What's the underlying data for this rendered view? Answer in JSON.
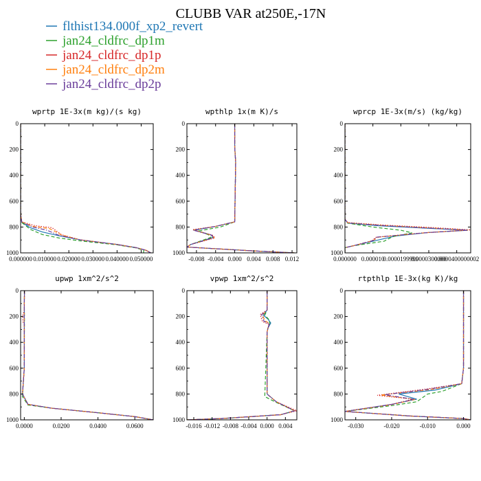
{
  "figure": {
    "title": "CLUBB VAR at250E,-17N",
    "legend": [
      {
        "label": "flthist134.000f_xp2_revert",
        "color": "#1f77b4",
        "dash": "solid"
      },
      {
        "label": "jan24_cldfrc_dp1m",
        "color": "#2ca02c",
        "dash": "dash"
      },
      {
        "label": "jan24_cldfrc_dp1p",
        "color": "#d62728",
        "dash": "dot"
      },
      {
        "label": "jan24_cldfrc_dp2m",
        "color": "#ff7f0e",
        "dash": "dash"
      },
      {
        "label": "jan24_cldfrc_dp2p",
        "color": "#6a3d9a",
        "dash": "dashdot"
      }
    ]
  },
  "chart_data": [
    {
      "type": "line",
      "title": "wprtp  1E-3x(m kg)/(s kg)",
      "xlim": [
        0,
        0.055
      ],
      "ylim": [
        0,
        1000
      ],
      "y_inverted": true,
      "xticks": [
        0.0,
        0.01,
        0.02,
        0.03,
        0.04,
        0.05
      ],
      "xtick_labels": [
        "0.000000",
        "0.010000",
        "0.020000",
        "0.030000",
        "0.040000",
        "0.050000"
      ],
      "yticks": [
        0,
        200,
        400,
        600,
        800,
        1000
      ],
      "series": [
        {
          "name": "flthist134.000f_xp2_revert",
          "x": [
            0,
            0,
            0.0005,
            0.004,
            0.009,
            0.016,
            0.025,
            0.04,
            0.048,
            0.052,
            0.054
          ],
          "y": [
            0,
            700,
            765,
            805,
            838,
            868,
            900,
            935,
            960,
            980,
            1000
          ]
        },
        {
          "name": "jan24_cldfrc_dp1m",
          "x": [
            0,
            0,
            0.0005,
            0.004,
            0.009,
            0.016,
            0.025,
            0.04,
            0.048,
            0.051,
            0.051
          ],
          "y": [
            0,
            700,
            765,
            818,
            858,
            885,
            908,
            938,
            962,
            980,
            1000
          ]
        },
        {
          "name": "jan24_cldfrc_dp1p",
          "x": [
            0,
            0,
            0.0005,
            0.006,
            0.013,
            0.017,
            0.025,
            0.04,
            0.048,
            0.052,
            0.054
          ],
          "y": [
            0,
            700,
            760,
            790,
            805,
            860,
            900,
            935,
            960,
            980,
            1000
          ]
        },
        {
          "name": "jan24_cldfrc_dp2m",
          "x": [
            0,
            0,
            0.0005,
            0.005,
            0.012,
            0.017,
            0.025,
            0.04,
            0.048,
            0.052,
            0.054
          ],
          "y": [
            0,
            700,
            760,
            795,
            812,
            862,
            900,
            935,
            960,
            980,
            1000
          ]
        },
        {
          "name": "jan24_cldfrc_dp2p",
          "x": [
            0,
            0,
            0.0005,
            0.005,
            0.011,
            0.016,
            0.025,
            0.04,
            0.048,
            0.052,
            0.054
          ],
          "y": [
            0,
            700,
            762,
            800,
            825,
            865,
            900,
            935,
            960,
            980,
            1000
          ]
        }
      ]
    },
    {
      "type": "line",
      "title": "wpthlp  1x(m K)/s",
      "xlim": [
        -0.01,
        0.013
      ],
      "ylim": [
        0,
        1000
      ],
      "y_inverted": true,
      "xticks": [
        -0.008,
        -0.004,
        0.0,
        0.004,
        0.008,
        0.012
      ],
      "xtick_labels": [
        "-0.008",
        "-0.004",
        "0.000",
        "0.004",
        "0.008",
        "0.012"
      ],
      "yticks": [
        0,
        200,
        400,
        600,
        800,
        1000
      ],
      "series": [
        {
          "name": "flthist134.000f_xp2_revert",
          "x": [
            0,
            0,
            0.0002,
            0,
            -0.004,
            -0.0085,
            -0.005,
            -0.0045,
            -0.0092,
            -0.01,
            0.004,
            0.0125
          ],
          "y": [
            0,
            180,
            300,
            760,
            795,
            825,
            860,
            880,
            935,
            955,
            985,
            1000
          ]
        },
        {
          "name": "jan24_cldfrc_dp1m",
          "x": [
            0,
            0,
            0.0002,
            0,
            -0.003,
            -0.0075,
            -0.0055,
            -0.005,
            -0.0092,
            -0.01,
            0.004,
            0.0125
          ],
          "y": [
            0,
            180,
            300,
            760,
            800,
            830,
            860,
            880,
            935,
            955,
            985,
            1000
          ]
        },
        {
          "name": "jan24_cldfrc_dp1p",
          "x": [
            0,
            0,
            0.0002,
            0,
            -0.004,
            -0.0088,
            -0.0045,
            -0.0042,
            -0.0092,
            -0.01,
            0.004,
            0.0125
          ],
          "y": [
            0,
            180,
            300,
            760,
            795,
            820,
            865,
            885,
            935,
            955,
            985,
            1000
          ]
        },
        {
          "name": "jan24_cldfrc_dp2m",
          "x": [
            0,
            0,
            0.0002,
            0,
            -0.004,
            -0.0086,
            -0.005,
            -0.0043,
            -0.0092,
            -0.01,
            0.004,
            0.0125
          ],
          "y": [
            0,
            180,
            300,
            760,
            795,
            822,
            862,
            882,
            935,
            955,
            985,
            1000
          ]
        },
        {
          "name": "jan24_cldfrc_dp2p",
          "x": [
            0,
            0,
            0.0002,
            0,
            -0.004,
            -0.0087,
            -0.0048,
            -0.0044,
            -0.0092,
            -0.01,
            0.004,
            0.0125
          ],
          "y": [
            0,
            180,
            300,
            760,
            795,
            824,
            863,
            883,
            935,
            955,
            985,
            1000
          ]
        }
      ]
    },
    {
      "type": "line",
      "title": "wprcp  1E-3x(m/s) (kg/kg)",
      "xlim": [
        0,
        4.5e-05
      ],
      "ylim": [
        0,
        1000
      ],
      "y_inverted": true,
      "xticks": [
        0,
        1e-05,
        2e-05,
        3e-05,
        4e-05
      ],
      "xtick_labels": [
        "0.000000",
        "0.000010",
        "0.0000199999",
        "0.0000300000",
        "0.0000400000002"
      ],
      "yticks": [
        0,
        200,
        400,
        600,
        800,
        1000
      ],
      "series": [
        {
          "name": "flthist134.000f_xp2_revert",
          "x": [
            0,
            0,
            1e-06,
            1.2e-05,
            3e-05,
            4.4e-05,
            3e-05,
            1.8e-05,
            1.2e-05,
            3e-06,
            0,
            0
          ],
          "y": [
            0,
            740,
            770,
            790,
            810,
            825,
            842,
            870,
            900,
            945,
            960,
            1000
          ]
        },
        {
          "name": "jan24_cldfrc_dp1m",
          "x": [
            0,
            0,
            1e-06,
            1e-05,
            2e-05,
            2.4e-05,
            1.7e-05,
            1.4e-05,
            3e-06,
            0,
            0
          ],
          "y": [
            0,
            740,
            770,
            800,
            825,
            845,
            875,
            910,
            945,
            960,
            1000
          ]
        },
        {
          "name": "jan24_cldfrc_dp1p",
          "x": [
            0,
            0,
            1e-06,
            1.4e-05,
            3.2e-05,
            4.5e-05,
            2.8e-05,
            1.1e-05,
            9.5e-06,
            3e-06,
            0,
            0
          ],
          "y": [
            0,
            740,
            765,
            785,
            805,
            822,
            845,
            880,
            910,
            945,
            960,
            1000
          ]
        },
        {
          "name": "jan24_cldfrc_dp2m",
          "x": [
            0,
            0,
            1e-06,
            1.3e-05,
            3.1e-05,
            4.4e-05,
            2.9e-05,
            1.2e-05,
            1e-05,
            3e-06,
            0,
            0
          ],
          "y": [
            0,
            740,
            767,
            787,
            808,
            824,
            844,
            878,
            905,
            945,
            960,
            1000
          ]
        },
        {
          "name": "jan24_cldfrc_dp2p",
          "x": [
            0,
            0,
            1e-06,
            1.3e-05,
            3e-05,
            4.4e-05,
            2.9e-05,
            1.15e-05,
            1e-05,
            3e-06,
            0,
            0
          ],
          "y": [
            0,
            740,
            768,
            788,
            808,
            824,
            844,
            878,
            905,
            945,
            960,
            1000
          ]
        }
      ]
    },
    {
      "type": "line",
      "title": "upwp  1xm^2/s^2",
      "xlim": [
        -0.002,
        0.07
      ],
      "ylim": [
        0,
        1000
      ],
      "y_inverted": true,
      "xticks": [
        0,
        0.02,
        0.04,
        0.06
      ],
      "xtick_labels": [
        "0.0000",
        "0.0200",
        "0.0400",
        "0.0600"
      ],
      "yticks": [
        0,
        200,
        400,
        600,
        800,
        1000
      ],
      "series": [
        {
          "name": "flthist134.000f_xp2_revert",
          "x": [
            0.0001,
            0,
            0,
            0,
            -0.001,
            0.002,
            0.015,
            0.04,
            0.06,
            0.07
          ],
          "y": [
            0,
            100,
            200,
            600,
            800,
            880,
            910,
            945,
            975,
            1000
          ]
        },
        {
          "name": "jan24_cldfrc_dp1m",
          "x": [
            0.0001,
            0,
            0.0001,
            0,
            -0.001,
            0.002,
            0.015,
            0.04,
            0.06,
            0.07
          ],
          "y": [
            0,
            100,
            200,
            600,
            820,
            885,
            910,
            945,
            975,
            1000
          ]
        },
        {
          "name": "jan24_cldfrc_dp1p",
          "x": [
            0.0001,
            0,
            -0.0008,
            -0.0008,
            0,
            0,
            -0.001,
            0.002,
            0.015,
            0.04,
            0.06,
            0.07
          ],
          "y": [
            0,
            150,
            190,
            240,
            260,
            600,
            800,
            880,
            910,
            945,
            975,
            1000
          ]
        },
        {
          "name": "jan24_cldfrc_dp2m",
          "x": [
            0.0001,
            0,
            0,
            0,
            -0.001,
            0.002,
            0.015,
            0.04,
            0.06,
            0.07
          ],
          "y": [
            0,
            100,
            200,
            600,
            800,
            880,
            910,
            945,
            975,
            1000
          ]
        },
        {
          "name": "jan24_cldfrc_dp2p",
          "x": [
            0.0001,
            0,
            0,
            0,
            -0.001,
            0.002,
            0.015,
            0.04,
            0.06,
            0.07
          ],
          "y": [
            0,
            100,
            200,
            600,
            800,
            880,
            910,
            945,
            975,
            1000
          ]
        }
      ]
    },
    {
      "type": "line",
      "title": "vpwp  1xm^2/s^2",
      "xlim": [
        -0.0175,
        0.0065
      ],
      "ylim": [
        0,
        1000
      ],
      "y_inverted": true,
      "xticks": [
        -0.016,
        -0.012,
        -0.008,
        -0.004,
        0.0,
        0.004
      ],
      "xtick_labels": [
        "-0.016",
        "-0.012",
        "-0.008",
        "-0.004",
        "0.000",
        "0.004"
      ],
      "yticks": [
        0,
        200,
        400,
        600,
        800,
        1000
      ],
      "series": [
        {
          "name": "flthist134.000f_xp2_revert",
          "x": [
            0,
            0,
            -0.0008,
            0.0002,
            0.0008,
            0.0002,
            0,
            0,
            0.002,
            0.006,
            0.003,
            -0.01,
            -0.0175
          ],
          "y": [
            0,
            150,
            190,
            220,
            250,
            290,
            320,
            800,
            860,
            930,
            960,
            990,
            1000
          ]
        },
        {
          "name": "jan24_cldfrc_dp1m",
          "x": [
            0,
            0,
            -0.0005,
            0.0003,
            0.0006,
            0.0002,
            0,
            -0.0005,
            0.002,
            0.006,
            0.003,
            -0.01,
            -0.0175
          ],
          "y": [
            0,
            150,
            190,
            220,
            250,
            290,
            320,
            820,
            865,
            930,
            960,
            990,
            1000
          ]
        },
        {
          "name": "jan24_cldfrc_dp1p",
          "x": [
            0,
            0,
            -0.0015,
            -0.001,
            0.0004,
            0.0002,
            0,
            0,
            0.002,
            0.0065,
            0.003,
            -0.01,
            -0.0175
          ],
          "y": [
            0,
            150,
            185,
            240,
            260,
            290,
            320,
            800,
            860,
            930,
            960,
            990,
            1000
          ]
        },
        {
          "name": "jan24_cldfrc_dp2m",
          "x": [
            0,
            0,
            -0.001,
            -0.0005,
            0.0005,
            0.0002,
            0,
            0,
            0.002,
            0.006,
            0.003,
            -0.01,
            -0.0175
          ],
          "y": [
            0,
            150,
            188,
            230,
            255,
            290,
            320,
            800,
            860,
            930,
            960,
            990,
            1000
          ]
        },
        {
          "name": "jan24_cldfrc_dp2p",
          "x": [
            0,
            0,
            -0.0012,
            -0.0007,
            0.0005,
            0.0002,
            0,
            0,
            0.002,
            0.006,
            0.003,
            -0.01,
            -0.0175
          ],
          "y": [
            0,
            150,
            186,
            235,
            257,
            290,
            320,
            800,
            860,
            930,
            960,
            990,
            1000
          ]
        }
      ]
    },
    {
      "type": "line",
      "title": "rtpthlp  1E-3x(kg K)/kg",
      "xlim": [
        -0.033,
        0.002
      ],
      "ylim": [
        0,
        1000
      ],
      "y_inverted": true,
      "xticks": [
        -0.03,
        -0.02,
        -0.01,
        0.0
      ],
      "xtick_labels": [
        "-0.030",
        "-0.020",
        "-0.010",
        "0.000"
      ],
      "yticks": [
        0,
        200,
        400,
        600,
        800,
        1000
      ],
      "series": [
        {
          "name": "flthist134.000f_xp2_revert",
          "x": [
            0,
            0,
            -0.0005,
            -0.008,
            -0.018,
            -0.013,
            -0.02,
            -0.033,
            -0.015,
            0,
            0.002
          ],
          "y": [
            0,
            600,
            720,
            770,
            800,
            840,
            880,
            935,
            970,
            990,
            1000
          ]
        },
        {
          "name": "jan24_cldfrc_dp1m",
          "x": [
            0,
            0,
            -0.0005,
            -0.006,
            -0.01,
            -0.013,
            -0.02,
            -0.033,
            -0.015,
            0,
            0.002
          ],
          "y": [
            0,
            600,
            720,
            780,
            800,
            860,
            890,
            935,
            970,
            990,
            1000
          ]
        },
        {
          "name": "jan24_cldfrc_dp1p",
          "x": [
            0,
            0,
            -0.0005,
            -0.01,
            -0.024,
            -0.014,
            -0.02,
            -0.033,
            -0.015,
            0,
            0.002
          ],
          "y": [
            0,
            600,
            720,
            760,
            810,
            840,
            880,
            935,
            970,
            990,
            1000
          ]
        },
        {
          "name": "jan24_cldfrc_dp2m",
          "x": [
            0,
            0,
            -0.0005,
            -0.009,
            -0.023,
            -0.0135,
            -0.02,
            -0.033,
            -0.015,
            0,
            0.002
          ],
          "y": [
            0,
            600,
            720,
            765,
            808,
            842,
            882,
            935,
            970,
            990,
            1000
          ]
        },
        {
          "name": "jan24_cldfrc_dp2p",
          "x": [
            0,
            0,
            -0.0005,
            -0.0095,
            -0.022,
            -0.0138,
            -0.02,
            -0.033,
            -0.015,
            0,
            0.002
          ],
          "y": [
            0,
            600,
            720,
            762,
            806,
            841,
            881,
            935,
            970,
            990,
            1000
          ]
        }
      ]
    }
  ]
}
